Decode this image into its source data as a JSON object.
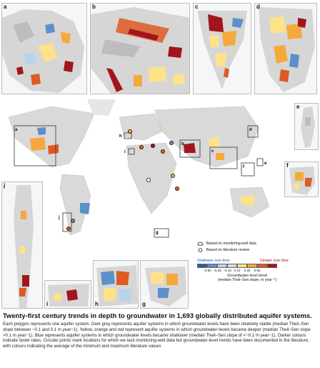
{
  "panel_labels": {
    "a": "a",
    "b": "b",
    "c": "c",
    "d": "d",
    "e": "e",
    "f": "f",
    "g": "g",
    "h": "h",
    "i": "i",
    "j": "j"
  },
  "map_inset_labels": [
    "a",
    "b",
    "c",
    "d",
    "e",
    "f",
    "g",
    "h",
    "i",
    "j"
  ],
  "legend": {
    "monitoring_label": "Based on monitoring-well data",
    "literature_label": "Based on literature review",
    "shallower_label": "Shallower over time",
    "deeper_label": "Deeper over time",
    "ticks": [
      "−0.50",
      "−0.25",
      "−0.10",
      "0.10",
      "0.25",
      "0.50"
    ],
    "colors": [
      "#2c5aa0",
      "#5d8fcb",
      "#b9d3ec",
      "#d9d9d9",
      "#fde28a",
      "#f5a93b",
      "#de5a24",
      "#a3151c"
    ],
    "title_line1": "Groundwater-level trend",
    "title_line2": "(median Theil–Sen slope; m year⁻¹)"
  },
  "caption": {
    "title": "Twenty-first century trends in depth to groundwater in 1,693 globally distributed aquifer systems.",
    "body": "Each polygon represents one aquifer system. Dark grey represents aquifer systems in which groundwater levels have been relatively stable (median Theil–Sen slope between −0.1 and 0.1 m year−1). Yellow, orange and red represent aquifer systems in which groundwater levels became deeper (median Theil–Sen slope >0.1 m year−1). Blue represents aquifer systems in which groundwater levels became shallower (median Theil–Sen slope of <−0.1 m year−1). Darker colours indicate faster rates. Circular points mark locations for which we lack monitoring-well data but groundwater-level trends have been documented in the literature, with colours indicating the average of the minimum and maximum literature values"
  }
}
